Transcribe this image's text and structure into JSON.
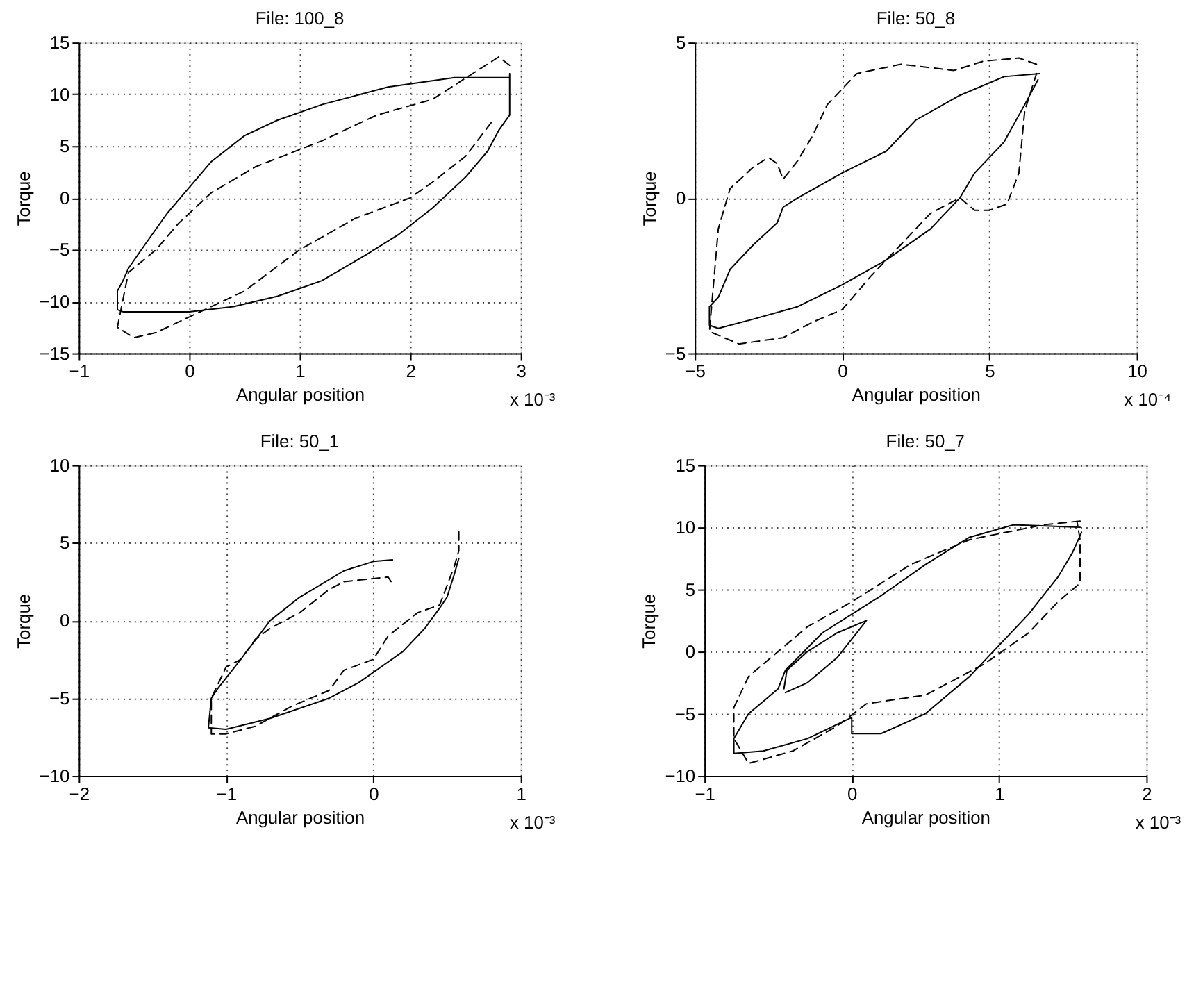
{
  "chart_data": [
    {
      "type": "line",
      "title": "File: 100_8",
      "xlabel": "Angular position",
      "ylabel": "Torque",
      "xlim": [
        -1,
        3
      ],
      "xticks": [
        -1,
        0,
        1,
        2,
        3
      ],
      "ylim": [
        -15,
        15
      ],
      "yticks": [
        -15,
        -10,
        -5,
        0,
        5,
        10,
        15
      ],
      "grid": true,
      "legend": false,
      "marker": "none",
      "annotations": [
        "x 10⁻³"
      ],
      "series": [
        {
          "color": "#000000",
          "line_style": "solid",
          "x": [
            2.9,
            2.4,
            1.8,
            1.2,
            0.8,
            0.5,
            0.2,
            0,
            -0.2,
            -0.4,
            -0.55,
            -0.6,
            -0.65,
            -0.65,
            -0.6,
            0,
            0.4,
            0.8,
            1.2,
            1.6,
            1.9,
            2.2,
            2.3,
            2.5,
            2.7,
            2.8,
            2.9,
            2.9,
            2.9
          ],
          "values": [
            11.6,
            11.6,
            10.7,
            9,
            7.5,
            6,
            3.5,
            1,
            -1.5,
            -4.5,
            -6.8,
            -8,
            -9,
            -10.8,
            -11,
            -11,
            -10.5,
            -9.5,
            -8,
            -5.5,
            -3.5,
            -1,
            0,
            2,
            4.5,
            6.5,
            8,
            9.5,
            12
          ]
        },
        {
          "color": "#000000",
          "line_style": "dashed",
          "x": [
            2.9,
            2.8,
            2.2,
            1.7,
            1.2,
            0.6,
            0.2,
            -0.1,
            -0.3,
            -0.55,
            -0.65,
            -0.5,
            -0.3,
            0,
            0.5,
            1,
            1.5,
            2,
            2.2,
            2.5,
            2.75
          ],
          "values": [
            12.8,
            13.6,
            9.5,
            8,
            5.5,
            3,
            0.5,
            -2.5,
            -5,
            -7.2,
            -12.5,
            -13.5,
            -13,
            -11.5,
            -9,
            -5,
            -2,
            0,
            1.5,
            4,
            7.5
          ]
        }
      ]
    },
    {
      "type": "line",
      "title": "File: 50_8",
      "xlabel": "Angular position",
      "ylabel": "Torque",
      "xlim": [
        -5,
        10
      ],
      "xticks": [
        -5,
        0,
        5,
        10
      ],
      "ylim": [
        -5,
        5
      ],
      "yticks": [
        -5,
        0,
        5
      ],
      "grid": true,
      "legend": false,
      "marker": "none",
      "annotations": [
        "x 10⁻⁴"
      ],
      "series": [
        {
          "color": "#000000",
          "line_style": "solid",
          "x": [
            6.7,
            5.5,
            4,
            2.5,
            1.5,
            0,
            -1.5,
            -2,
            -2.2,
            -3,
            -3.8,
            -4.2,
            -4.5,
            -4.5,
            -4.2,
            -3,
            -1.5,
            0,
            1.5,
            3,
            4,
            4.5,
            5.5,
            6.2,
            6.65
          ],
          "values": [
            4,
            3.9,
            3.3,
            2.5,
            1.5,
            0.8,
            0,
            -0.3,
            -0.8,
            -1.5,
            -2.3,
            -3.2,
            -3.5,
            -4.1,
            -4.2,
            -3.9,
            -3.5,
            -2.8,
            -2,
            -1,
            0,
            0.8,
            1.8,
            3,
            3.8
          ]
        },
        {
          "color": "#000000",
          "line_style": "dashed",
          "x": [
            6.6,
            6,
            4.8,
            3.8,
            2,
            0.5,
            -0.5,
            -1,
            -1.5,
            -2,
            -2.2,
            -2.5,
            -3,
            -3.8,
            -4.2,
            -4.4,
            -4.5,
            -3.5,
            -2,
            -1,
            0,
            1,
            2,
            3,
            4,
            4.5,
            5,
            5.6,
            6,
            6.2,
            6.6
          ],
          "values": [
            4.3,
            4.5,
            4.4,
            4.1,
            4.3,
            4,
            3,
            2,
            1.2,
            0.6,
            1.1,
            1.3,
            1,
            0.3,
            -1,
            -3.2,
            -4.3,
            -4.7,
            -4.5,
            -4,
            -3.6,
            -2.5,
            -1.5,
            -0.5,
            0,
            -0.4,
            -0.4,
            -0.2,
            0.8,
            2.8,
            4
          ]
        }
      ]
    },
    {
      "type": "line",
      "title": "File: 50_1",
      "xlabel": "Angular position",
      "ylabel": "Torque",
      "xlim": [
        -2,
        1
      ],
      "xticks": [
        -2,
        -1,
        0,
        1
      ],
      "ylim": [
        -10,
        10
      ],
      "yticks": [
        -10,
        -5,
        0,
        5,
        10
      ],
      "grid": true,
      "legend": false,
      "marker": "none",
      "annotations": [
        "x 10⁻³"
      ],
      "series": [
        {
          "color": "#000000",
          "line_style": "solid",
          "x": [
            0.13,
            0,
            -0.2,
            -0.5,
            -0.7,
            -0.9,
            -1.05,
            -1.1,
            -1.12,
            -1,
            -0.7,
            -0.3,
            -0.1,
            0.05,
            0.2,
            0.35,
            0.45,
            0.5,
            0.55,
            0.58
          ],
          "values": [
            3.9,
            3.8,
            3.2,
            1.5,
            0,
            -2.5,
            -4.3,
            -5,
            -6.9,
            -7,
            -6.3,
            -5,
            -4,
            -3,
            -2,
            -0.5,
            0.8,
            1.5,
            3,
            4
          ]
        },
        {
          "color": "#000000",
          "line_style": "dashed",
          "x": [
            0.58,
            0.58,
            0.55,
            0.45,
            0.3,
            0.1,
            0,
            -0.2,
            -0.3,
            -0.55,
            -0.8,
            -1,
            -1.1,
            -1.1,
            -1,
            -0.9,
            -0.8,
            -0.7,
            -0.6,
            -0.5,
            -0.3,
            -0.2,
            0,
            0.1,
            0.12
          ],
          "values": [
            5.7,
            4.5,
            3.5,
            1,
            0.5,
            -1,
            -2.5,
            -3.2,
            -4.5,
            -5.5,
            -6.8,
            -7.3,
            -7.3,
            -5,
            -3,
            -2.5,
            -1.2,
            -0.5,
            0,
            0.5,
            2,
            2.5,
            2.7,
            2.8,
            2.5
          ]
        }
      ]
    },
    {
      "type": "line",
      "title": "File: 50_7",
      "xlabel": "Angular position",
      "ylabel": "Torque",
      "xlim": [
        -1,
        2
      ],
      "xticks": [
        -1,
        0,
        1,
        2
      ],
      "ylim": [
        -10,
        15
      ],
      "yticks": [
        -10,
        -5,
        0,
        5,
        10,
        15
      ],
      "grid": true,
      "legend": false,
      "marker": "none",
      "annotations": [
        "x 10⁻³"
      ],
      "series": [
        {
          "color": "#000000",
          "line_style": "solid",
          "x": [
            1.55,
            1.1,
            0.8,
            0.5,
            0.2,
            0,
            -0.2,
            -0.3,
            -0.45,
            -0.5,
            -0.6,
            -0.7,
            -0.8,
            -0.8,
            -0.6,
            -0.3,
            0,
            0,
            0.2,
            0.5,
            0.8,
            1,
            1.2,
            1.4,
            1.5,
            1.56
          ],
          "values": [
            10,
            10.2,
            9.2,
            7,
            4.5,
            3,
            1.5,
            0.3,
            -1.5,
            -3,
            -4,
            -5,
            -7,
            -8.2,
            -8,
            -7,
            -5.3,
            -6.6,
            -6.6,
            -5,
            -2,
            0.5,
            3,
            6,
            8,
            9.6
          ]
        },
        {
          "color": "#000000",
          "line_style": "solid",
          "x": [
            -0.45,
            -0.3,
            -0.1,
            0.1,
            -0.1,
            -0.3,
            -0.44,
            -0.46
          ],
          "values": [
            -3.3,
            -2.5,
            -0.5,
            2.5,
            1.5,
            0,
            -1.5,
            -3
          ]
        },
        {
          "color": "#000000",
          "line_style": "dashed",
          "x": [
            1.55,
            1.3,
            0.8,
            0.4,
            0,
            -0.3,
            -0.5,
            -0.7,
            -0.8,
            -0.8,
            -0.7,
            -0.4,
            -0.1,
            0.1,
            0.5,
            0.9,
            1.2,
            1.4,
            1.55,
            1.55,
            1.53
          ],
          "values": [
            10.5,
            10.2,
            9,
            7,
            4,
            2,
            0,
            -2,
            -4.5,
            -7,
            -9,
            -8,
            -6,
            -4.2,
            -3.5,
            -1,
            1.5,
            4,
            5.5,
            9,
            10.4
          ]
        }
      ]
    }
  ]
}
